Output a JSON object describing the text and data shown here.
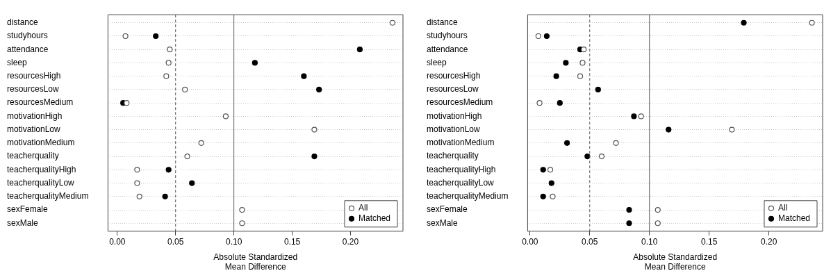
{
  "chart_data": [
    {
      "type": "scatter",
      "orientation": "horizontal",
      "xlabel": "Absolute Standardized\nMean Difference",
      "categories": [
        "distance",
        "studyhours",
        "attendance",
        "sleep",
        "resourcesHigh",
        "resourcesLow",
        "resourcesMedium",
        "motivationHigh",
        "motivationLow",
        "motivationMedium",
        "teacherquality",
        "teacherqualityHigh",
        "teacherqualityLow",
        "teacherqualityMedium",
        "sexFemale",
        "sexMale"
      ],
      "series": [
        {
          "name": "All",
          "color": "#555555",
          "marker": "circle",
          "values": [
            0.236,
            0.007,
            0.045,
            0.044,
            0.042,
            0.058,
            0.008,
            0.093,
            0.169,
            0.072,
            0.06,
            0.017,
            0.017,
            0.019,
            0.107,
            0.107
          ]
        },
        {
          "name": "Matched",
          "color": "#000000",
          "marker": "circle",
          "values": [
            null,
            0.033,
            0.208,
            0.118,
            0.16,
            0.173,
            0.005,
            null,
            null,
            null,
            0.169,
            0.044,
            0.064,
            0.041,
            null,
            null
          ]
        }
      ],
      "xlim": [
        -0.008,
        0.245
      ],
      "xticks": [
        {
          "value": 0,
          "label": "0.00"
        },
        {
          "value": 0.05,
          "label": "0.05"
        },
        {
          "value": 0.1,
          "label": "0.10"
        },
        {
          "value": 0.15,
          "label": "0.15"
        },
        {
          "value": 0.2,
          "label": "0.20"
        }
      ],
      "ref_lines": [
        {
          "axis": "x",
          "value": 0.05,
          "line_style": "dashed",
          "color": "#555555"
        },
        {
          "axis": "x",
          "value": 0.1,
          "line_style": "solid",
          "color": "#555555"
        }
      ],
      "grid": "y",
      "legend": "bottom right"
    },
    {
      "type": "scatter",
      "orientation": "horizontal",
      "xlabel": "Absolute Standardized\nMean Difference",
      "categories": [
        "distance",
        "studyhours",
        "attendance",
        "sleep",
        "resourcesHigh",
        "resourcesLow",
        "resourcesMedium",
        "motivationHigh",
        "motivationLow",
        "motivationMedium",
        "teacherquality",
        "teacherqualityHigh",
        "teacherqualityLow",
        "teacherqualityMedium",
        "sexFemale",
        "sexMale"
      ],
      "series": [
        {
          "name": "All",
          "color": "#555555",
          "marker": "circle",
          "values": [
            0.236,
            0.007,
            0.045,
            0.044,
            0.042,
            null,
            0.008,
            0.093,
            0.169,
            0.072,
            0.06,
            0.017,
            null,
            0.019,
            0.107,
            0.107
          ]
        },
        {
          "name": "Matched",
          "color": "#000000",
          "marker": "circle",
          "values": [
            0.179,
            0.014,
            0.042,
            0.03,
            0.022,
            0.057,
            0.025,
            0.087,
            0.116,
            0.031,
            0.048,
            0.011,
            0.018,
            0.011,
            0.083,
            0.083
          ]
        }
      ],
      "xlim": [
        -0.002,
        0.245
      ],
      "xticks": [
        {
          "value": 0,
          "label": "0.00"
        },
        {
          "value": 0.05,
          "label": "0.05"
        },
        {
          "value": 0.1,
          "label": "0.10"
        },
        {
          "value": 0.15,
          "label": "0.15"
        },
        {
          "value": 0.2,
          "label": "0.20"
        }
      ],
      "ref_lines": [
        {
          "axis": "x",
          "value": 0.05,
          "line_style": "dashed",
          "color": "#555555"
        },
        {
          "axis": "x",
          "value": 0.1,
          "line_style": "solid",
          "color": "#555555"
        }
      ],
      "grid": "y",
      "legend": "bottom right"
    }
  ]
}
